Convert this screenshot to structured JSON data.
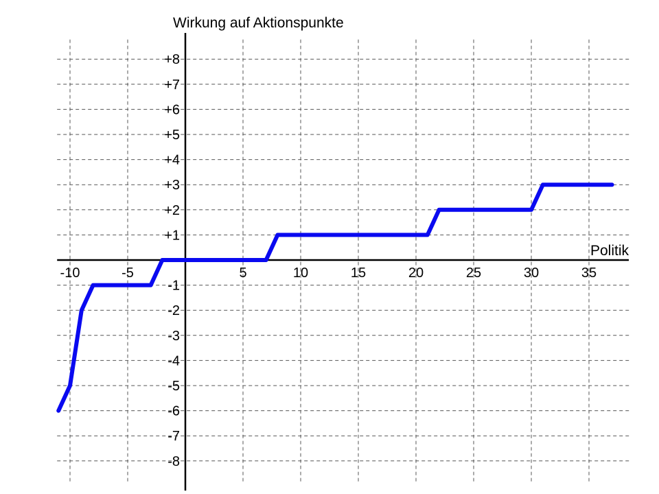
{
  "chart_data": {
    "type": "line",
    "title": "",
    "xlabel": "Politik",
    "ylabel": "Wirkung auf Aktionspunkte",
    "xlim": [
      -11,
      38
    ],
    "ylim": [
      -9,
      9
    ],
    "x_ticks": [
      -10,
      -5,
      5,
      10,
      15,
      20,
      25,
      30,
      35
    ],
    "x_tick_labels": [
      "-10",
      "-5",
      "5",
      "10",
      "15",
      "20",
      "25",
      "30",
      "35"
    ],
    "y_ticks": [
      8,
      7,
      6,
      5,
      4,
      3,
      2,
      1,
      -1,
      -2,
      -3,
      -4,
      -5,
      -6,
      -7,
      -8
    ],
    "y_tick_labels": [
      "+8",
      "+7",
      "+6",
      "+5",
      "+4",
      "+3",
      "+2",
      "+1",
      "-1",
      "-2",
      "-3",
      "-4",
      "-5",
      "-6",
      "-7",
      "-8"
    ],
    "grid": true,
    "grid_style": "dashed",
    "series": [
      {
        "color": "#0a0af0",
        "x": [
          -11,
          -10,
          -9,
          -8,
          -3,
          -2,
          7,
          8,
          21,
          22,
          30,
          31,
          37
        ],
        "y": [
          -6,
          -5,
          -2,
          -1,
          -1,
          0,
          0,
          1,
          1,
          2,
          2,
          3,
          3
        ]
      }
    ]
  }
}
